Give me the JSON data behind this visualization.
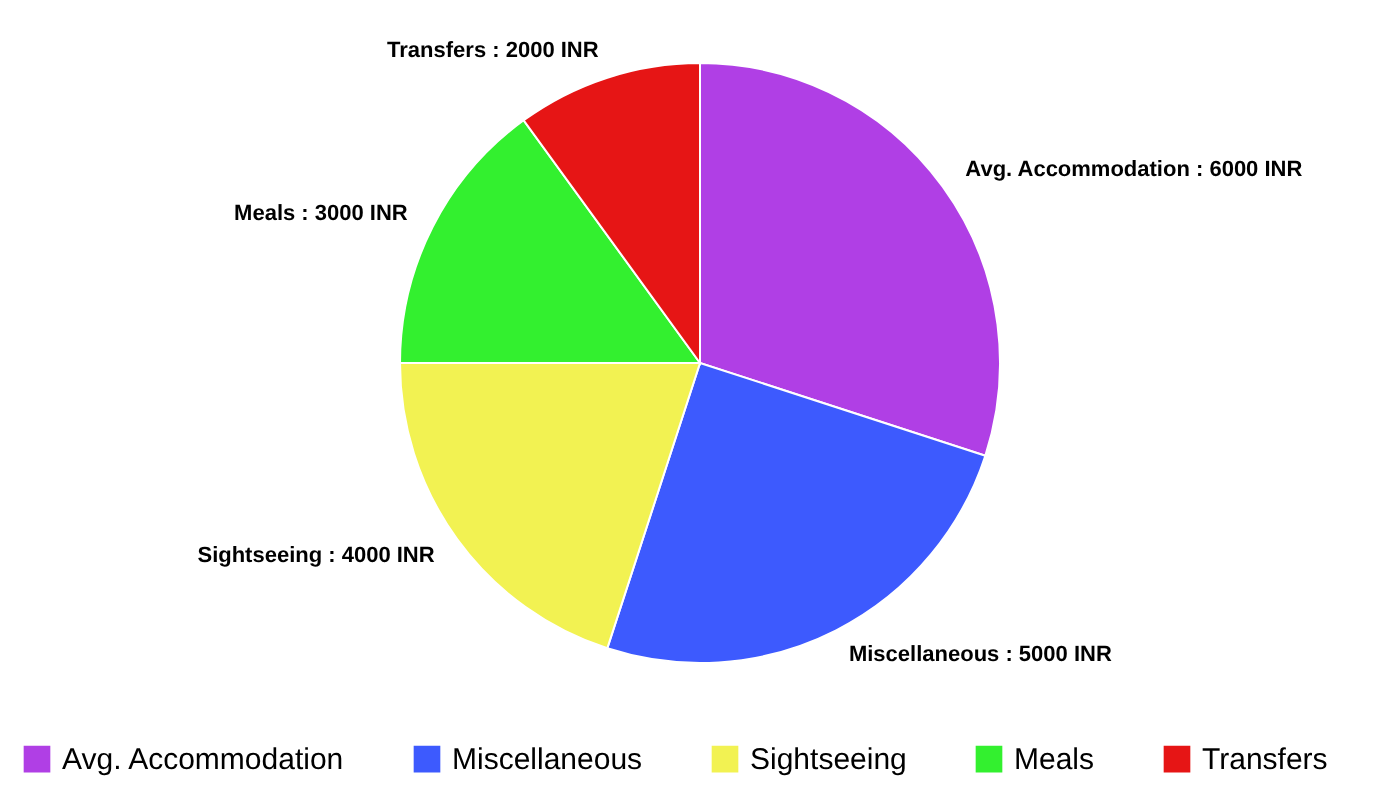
{
  "chart_data": {
    "type": "pie",
    "categories": [
      "Avg. Accommodation",
      "Miscellaneous",
      "Sightseeing",
      "Meals",
      "Transfers"
    ],
    "values": [
      6000,
      5000,
      4000,
      3000,
      2000
    ],
    "colors": [
      "#b03fe5",
      "#3d5afe",
      "#f2f252",
      "#33f02f",
      "#e61515"
    ],
    "value_labels": [
      "Avg. Accommodation : 6000 INR",
      "Miscellaneous : 5000 INR",
      "Sightseeing : 4000 INR",
      "Meals : 3000 INR",
      "Transfers : 2000 INR"
    ],
    "legend": "bottom"
  }
}
